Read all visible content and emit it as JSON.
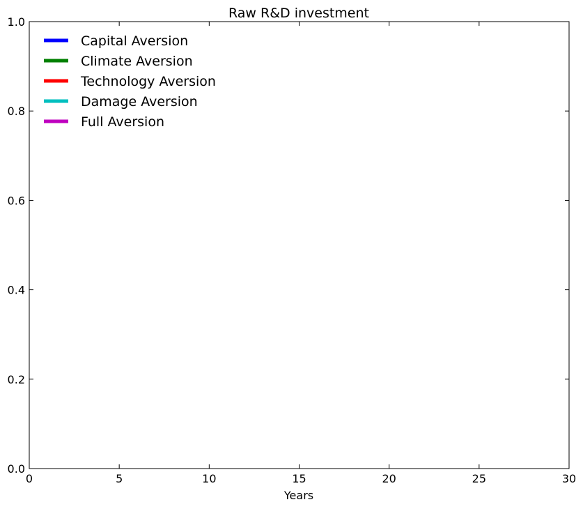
{
  "chart_data": {
    "type": "line",
    "title": "Raw R&D investment",
    "xlabel": "Years",
    "ylabel": "",
    "xlim": [
      0,
      30
    ],
    "ylim": [
      0.0,
      1.0
    ],
    "x_ticks": [
      "0",
      "5",
      "10",
      "15",
      "20",
      "25",
      "30"
    ],
    "x_tick_values": [
      0,
      5,
      10,
      15,
      20,
      25,
      30
    ],
    "y_ticks": [
      "0.0",
      "0.2",
      "0.4",
      "0.6",
      "0.8",
      "1.0"
    ],
    "y_tick_values": [
      0.0,
      0.2,
      0.4,
      0.6,
      0.8,
      1.0
    ],
    "grid": false,
    "legend_position": "top-left",
    "series": [
      {
        "name": "Capital Aversion",
        "color": "#0000ff",
        "x": [],
        "values": []
      },
      {
        "name": "Climate Aversion",
        "color": "#008000",
        "x": [],
        "values": []
      },
      {
        "name": "Technology Aversion",
        "color": "#ff0000",
        "x": [],
        "values": []
      },
      {
        "name": "Damage Aversion",
        "color": "#00bfbf",
        "x": [],
        "values": []
      },
      {
        "name": "Full Aversion",
        "color": "#bf00bf",
        "x": [],
        "values": []
      }
    ]
  }
}
